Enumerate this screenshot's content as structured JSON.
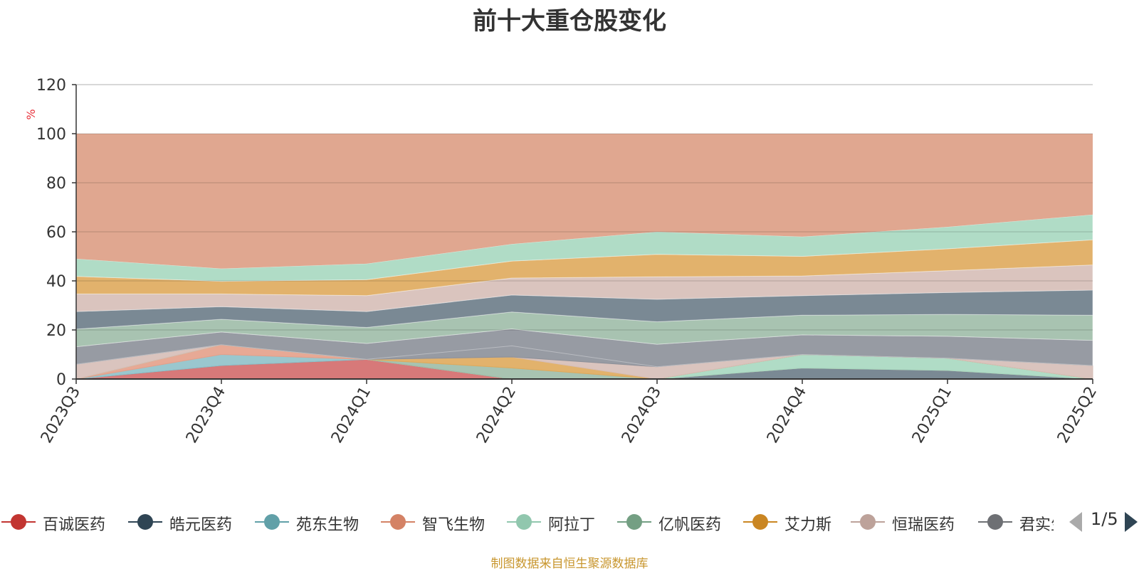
{
  "chart_data": {
    "type": "area",
    "stacked": true,
    "title": "前十大重仓股变化",
    "ylabel": "%",
    "ylim": [
      0,
      120
    ],
    "yticks": [
      0,
      20,
      40,
      60,
      80,
      100,
      120
    ],
    "categories": [
      "2023Q3",
      "2023Q4",
      "2024Q1",
      "2024Q2",
      "2024Q3",
      "2024Q4",
      "2025Q1",
      "2025Q2"
    ],
    "grid": true,
    "legend_position": "bottom",
    "series": [
      {
        "name": "百诚医药",
        "color": "#d36a6a",
        "values": [
          0,
          5.5,
          8,
          0,
          0,
          0,
          0,
          0
        ]
      },
      {
        "name": "皓元医药",
        "color": "#6c7c88",
        "values": [
          0,
          0,
          0,
          0,
          0,
          4.5,
          3.5,
          0
        ]
      },
      {
        "name": "苑东生物",
        "color": "#8fc1c9",
        "values": [
          0,
          4.5,
          0,
          0,
          0,
          0,
          0,
          0
        ]
      },
      {
        "name": "智飞生物",
        "color": "#e4a08a",
        "values": [
          0,
          4,
          0,
          0,
          0,
          0,
          0,
          0
        ]
      },
      {
        "name": "阿拉丁",
        "color": "#a7d8c0",
        "values": [
          0,
          0,
          0,
          0,
          0,
          5.5,
          5,
          0
        ]
      },
      {
        "name": "亿帆医药",
        "color": "#9ebda8",
        "values": [
          0,
          0,
          0,
          4.5,
          0,
          0,
          0,
          0
        ]
      },
      {
        "name": "艾力斯",
        "color": "#dfaa5c",
        "values": [
          0,
          0,
          0,
          4.5,
          0,
          0,
          0,
          0
        ]
      },
      {
        "name": "恒瑞医药",
        "color": "#d6beb7",
        "values": [
          6,
          0,
          0,
          0,
          5,
          0,
          0,
          5.5
        ]
      },
      {
        "name": "君实生物",
        "color": "#8c9099",
        "values": [
          0,
          0,
          0,
          4.5,
          0,
          0,
          0,
          0
        ]
      }
    ],
    "stack_tops": [
      49,
      45,
      47,
      55,
      60,
      58,
      62,
      67
    ],
    "remainder_top": 100,
    "remainder_color": "#e0a790"
  },
  "legend": {
    "page": "1/5",
    "items": [
      {
        "name": "百诚医药",
        "color": "#c23531"
      },
      {
        "name": "皓元医药",
        "color": "#2f4554"
      },
      {
        "name": "苑东生物",
        "color": "#61a0a8"
      },
      {
        "name": "智飞生物",
        "color": "#d48265"
      },
      {
        "name": "阿拉丁",
        "color": "#91c7ae"
      },
      {
        "name": "亿帆医药",
        "color": "#749f83"
      },
      {
        "name": "艾力斯",
        "color": "#ca8622"
      },
      {
        "name": "恒瑞医药",
        "color": "#bda29a"
      },
      {
        "name": "君实生物",
        "color": "#6e7074"
      }
    ]
  },
  "source": "制图数据来自恒生聚源数据库"
}
